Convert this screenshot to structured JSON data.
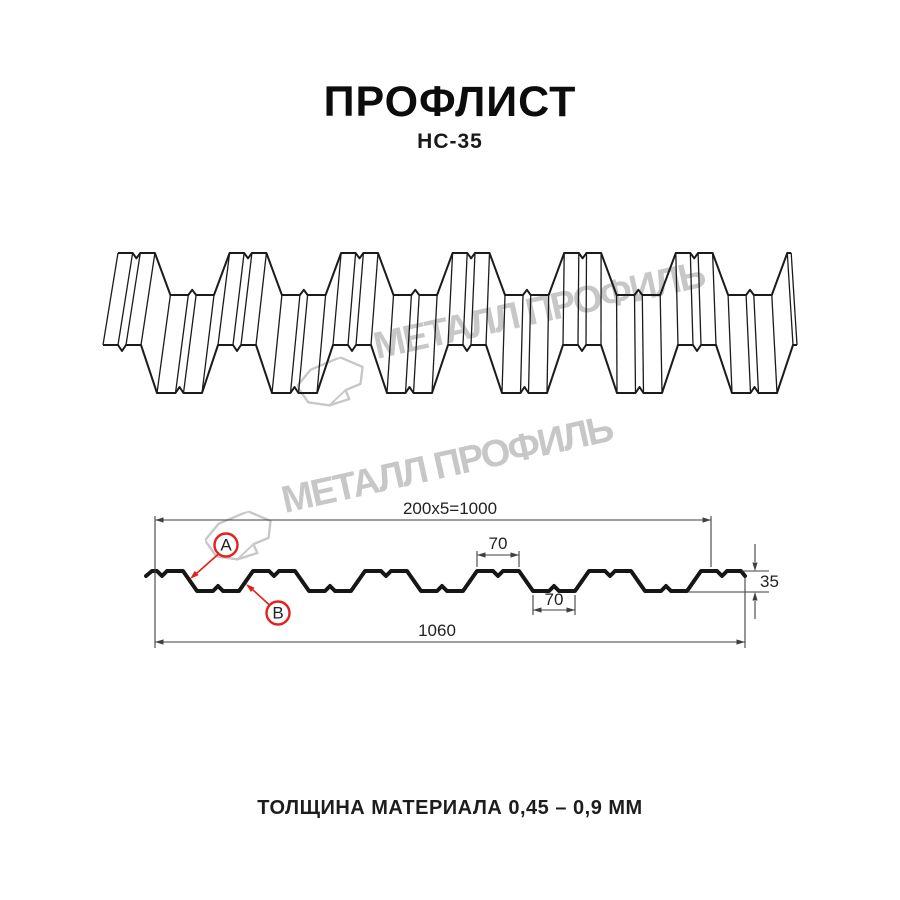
{
  "header": {
    "title": "ПРОФЛИСТ",
    "subtitle": "НС-35"
  },
  "watermark": {
    "text": "МЕТАЛЛ ПРОФИЛЬ"
  },
  "section": {
    "dim_top": "200x5=1000",
    "dim_crest_width": "70",
    "dim_valley_width": "70",
    "dim_height": "35",
    "dim_total_width": "1060",
    "callout_a": "A",
    "callout_b": "B"
  },
  "footer": {
    "thickness_label": "ТОЛЩИНА МАТЕРИАЛА 0,45 – 0,9 ММ"
  },
  "colors": {
    "ink": "#1b1b1b",
    "dimension_line": "#3f3f3f",
    "accent_red": "#e3211e",
    "watermark_gray": "#c7c7c7"
  }
}
